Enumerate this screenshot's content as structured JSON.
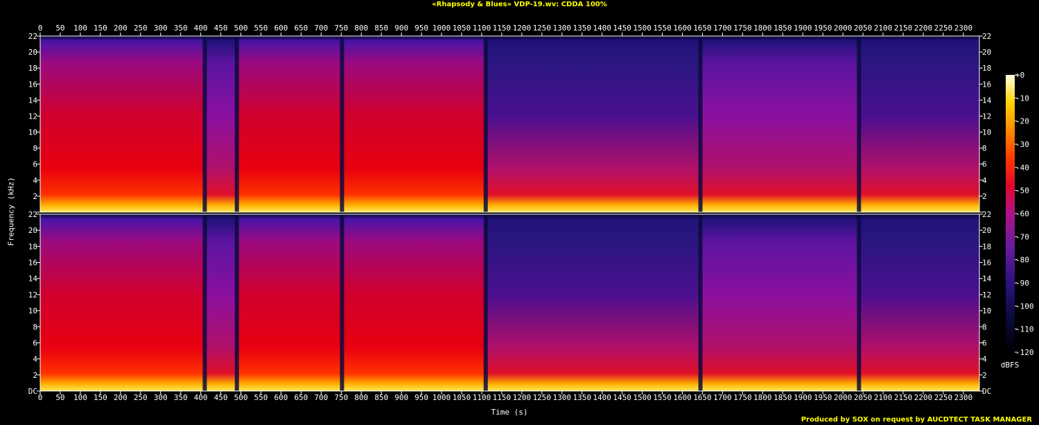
{
  "chart_data": {
    "type": "heatmap",
    "title": "«Rhapsody & Blues» VDP-19.wv: CDDA 100%",
    "xlabel": "Time (s)",
    "ylabel": "Frequency (kHz)",
    "colorbar_label": "dBFS",
    "footer": "Produced by SOX on request by AUCDTECT TASK MANAGER",
    "x_range": [
      0,
      2340
    ],
    "x_ticks": [
      0,
      50,
      100,
      150,
      200,
      250,
      300,
      350,
      400,
      450,
      500,
      550,
      600,
      650,
      700,
      750,
      800,
      850,
      900,
      950,
      1000,
      1050,
      1100,
      1150,
      1200,
      1250,
      1300,
      1350,
      1400,
      1450,
      1500,
      1550,
      1600,
      1650,
      1700,
      1750,
      1800,
      1850,
      1900,
      1950,
      2000,
      2050,
      2100,
      2150,
      2200,
      2250,
      2300
    ],
    "y_range": [
      0,
      22
    ],
    "y_tick_labels": [
      "DC",
      "2",
      "4",
      "6",
      "8",
      "10",
      "12",
      "14",
      "16",
      "18",
      "20",
      "22"
    ],
    "y_tick_values": [
      0,
      2,
      4,
      6,
      8,
      10,
      12,
      14,
      16,
      18,
      20,
      22
    ],
    "colorbar_range": [
      -120,
      0
    ],
    "colorbar_ticks": [
      "+0",
      "-10",
      "-20",
      "-30",
      "-40",
      "-50",
      "-60",
      "-70",
      "-80",
      "-90",
      "-100",
      "-110",
      "-120"
    ],
    "channels": 2,
    "track_boundaries_s": [
      0,
      410,
      490,
      752,
      1110,
      1645,
      2040,
      2340
    ],
    "track_segments": [
      {
        "start": 0,
        "end": 410,
        "brightness": 0.75
      },
      {
        "start": 410,
        "end": 490,
        "brightness": 0.55
      },
      {
        "start": 490,
        "end": 752,
        "brightness": 0.78
      },
      {
        "start": 752,
        "end": 1110,
        "brightness": 0.62
      },
      {
        "start": 1110,
        "end": 1645,
        "brightness": 0.45
      },
      {
        "start": 1645,
        "end": 2040,
        "brightness": 0.6
      },
      {
        "start": 2040,
        "end": 2340,
        "brightness": 0.4
      }
    ]
  }
}
